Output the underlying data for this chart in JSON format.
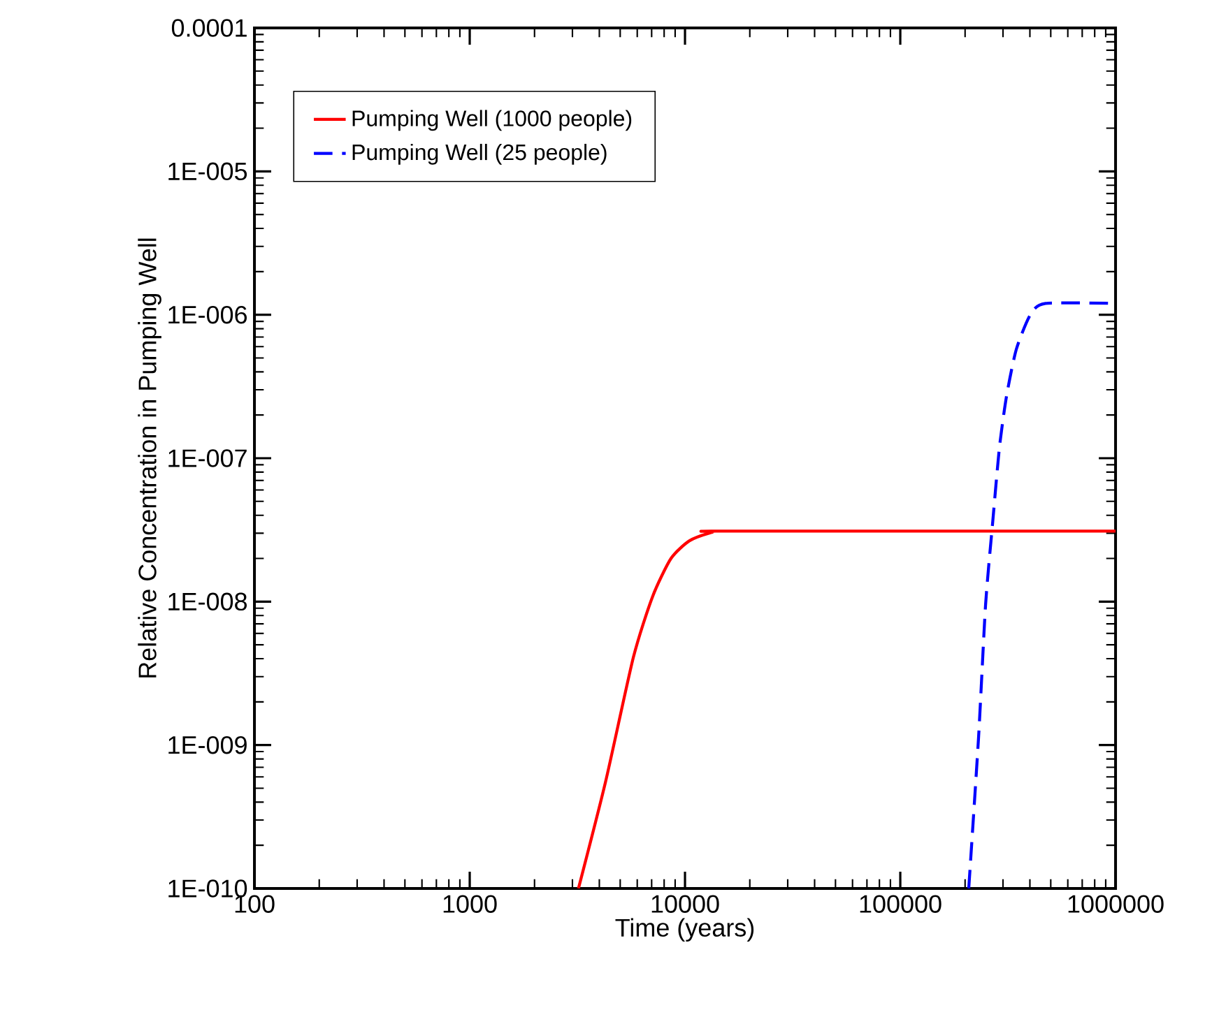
{
  "chart_data": {
    "type": "line",
    "xlabel": "Time (years)",
    "ylabel": "Relative Concentration in Pumping Well",
    "log": "xy",
    "xlim": [
      100,
      1000000
    ],
    "ylim": [
      1e-10,
      0.0001
    ],
    "xticks": [
      100,
      1000,
      10000,
      100000,
      1000000
    ],
    "yticks": [
      {
        "value": 1e-10,
        "label": "1E-010"
      },
      {
        "value": 1e-09,
        "label": "1E-009"
      },
      {
        "value": 1e-08,
        "label": "1E-008"
      },
      {
        "value": 1e-07,
        "label": "1E-007"
      },
      {
        "value": 1e-06,
        "label": "1E-006"
      },
      {
        "value": 1e-05,
        "label": "1E-005"
      },
      {
        "value": 0.0001,
        "label": "0.0001"
      }
    ],
    "grid": false,
    "legend": "top left",
    "marker": "none",
    "series": [
      {
        "name": "Pumping Well (1000 people)",
        "color": "#ff0000",
        "line_style": "solid",
        "x": [
          3200,
          4270,
          5760,
          7080,
          8610,
          10500,
          13400,
          15000,
          1000000
        ],
        "values": [
          1e-10,
          5.5e-10,
          4.1e-09,
          1.09e-08,
          2e-08,
          2.66e-08,
          3.05e-08,
          3.1e-08,
          3.1e-08
        ]
      },
      {
        "name": "Pumping Well (25 people)",
        "color": "#0000ff",
        "line_style": "dashed",
        "x": [
          208000,
          231000,
          249000,
          269000,
          289000,
          312000,
          346000,
          402000,
          473000,
          1000000
        ],
        "values": [
          1e-10,
          1.13e-09,
          9.5e-09,
          3.65e-08,
          1.2e-07,
          2.74e-07,
          5.75e-07,
          1e-06,
          1.2e-06,
          1.2e-06
        ]
      }
    ]
  }
}
